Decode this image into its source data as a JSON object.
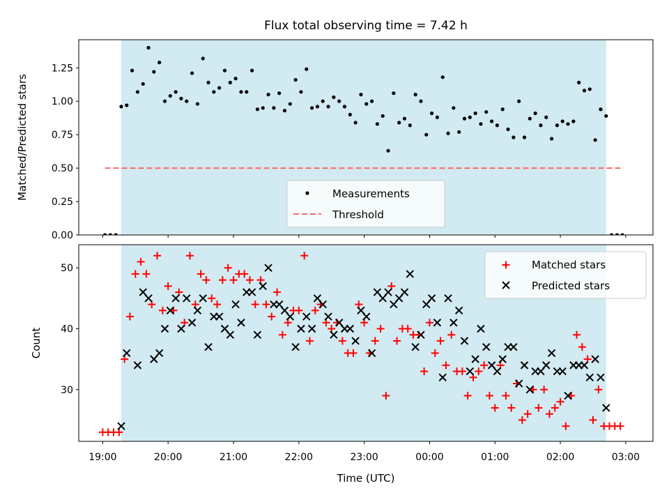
{
  "figure": {
    "title": "Flux total observing time = 7.42 h",
    "xlabel": "Time (UTC)"
  },
  "colors": {
    "shade": "#add8e6",
    "measurement": "#000000",
    "threshold": "#ff6666",
    "matched": "#ff0000",
    "predicted": "#000000"
  },
  "chart_data": [
    {
      "type": "scatter",
      "panel": "top",
      "ylabel": "Matched/Predicted stars",
      "xlim": [
        "18:38",
        "03:25"
      ],
      "ylim": [
        0,
        1.46
      ],
      "yticks": [
        0.0,
        0.25,
        0.5,
        0.75,
        1.0,
        1.25
      ],
      "ytick_labels": [
        "0.00",
        "0.25",
        "0.50",
        "0.75",
        "1.00",
        "1.25"
      ],
      "shaded_interval": [
        "19:17",
        "02:42"
      ],
      "threshold": {
        "label": "Threshold",
        "y": 0.5,
        "x": [
          "19:02",
          "02:58"
        ]
      },
      "legend": {
        "location": "lower center",
        "entries": [
          "Measurements",
          "Threshold"
        ]
      },
      "series": [
        {
          "name": "Measurements",
          "x": [
            "19:02",
            "19:07",
            "19:12",
            "19:17",
            "19:22",
            "19:27",
            "19:32",
            "19:37",
            "19:42",
            "19:47",
            "19:52",
            "19:57",
            "20:02",
            "20:07",
            "20:12",
            "20:17",
            "20:22",
            "20:27",
            "20:32",
            "20:37",
            "20:42",
            "20:47",
            "20:52",
            "20:57",
            "21:02",
            "21:07",
            "21:12",
            "21:17",
            "21:22",
            "21:27",
            "21:32",
            "21:37",
            "21:42",
            "21:47",
            "21:52",
            "21:57",
            "22:02",
            "22:07",
            "22:12",
            "22:17",
            "22:22",
            "22:27",
            "22:32",
            "22:37",
            "22:42",
            "22:47",
            "22:52",
            "22:57",
            "23:02",
            "23:07",
            "23:12",
            "23:17",
            "23:22",
            "23:27",
            "23:32",
            "23:37",
            "23:42",
            "23:47",
            "23:52",
            "23:57",
            "00:02",
            "00:07",
            "00:12",
            "00:17",
            "00:22",
            "00:27",
            "00:32",
            "00:37",
            "00:42",
            "00:47",
            "00:52",
            "00:57",
            "01:02",
            "01:07",
            "01:12",
            "01:17",
            "01:22",
            "01:27",
            "01:32",
            "01:37",
            "01:42",
            "01:47",
            "01:52",
            "01:57",
            "02:02",
            "02:07",
            "02:12",
            "02:17",
            "02:22",
            "02:27",
            "02:32",
            "02:37",
            "02:42",
            "02:47",
            "02:52",
            "02:57"
          ],
          "y": [
            0.0,
            0.0,
            0.0,
            0.96,
            0.97,
            1.23,
            1.07,
            1.13,
            1.4,
            1.22,
            1.29,
            1.0,
            1.04,
            1.07,
            1.02,
            1.0,
            1.21,
            0.98,
            1.32,
            1.14,
            1.07,
            1.1,
            1.23,
            1.14,
            1.17,
            1.07,
            1.07,
            1.23,
            0.94,
            0.95,
            1.05,
            0.95,
            1.06,
            0.93,
            0.98,
            1.16,
            1.07,
            1.24,
            0.95,
            0.96,
            1.0,
            0.96,
            1.03,
            1.0,
            0.96,
            0.9,
            0.84,
            1.05,
            0.98,
            1.0,
            0.83,
            0.89,
            0.63,
            1.06,
            0.84,
            0.87,
            0.82,
            1.05,
            1.0,
            0.75,
            0.91,
            0.88,
            1.18,
            0.76,
            0.95,
            0.77,
            0.87,
            0.88,
            0.91,
            0.83,
            0.92,
            0.85,
            0.82,
            0.94,
            0.79,
            0.73,
            1.0,
            0.73,
            0.87,
            0.91,
            0.82,
            0.88,
            0.72,
            0.82,
            0.85,
            0.83,
            0.85,
            1.14,
            1.08,
            1.09,
            0.71,
            0.94,
            0.89,
            0.0,
            0.0,
            0.0
          ]
        }
      ]
    },
    {
      "type": "scatter",
      "panel": "bottom",
      "ylabel": "Count",
      "xlabel": "Time (UTC)",
      "xlim": [
        "18:38",
        "03:25"
      ],
      "ylim": [
        21.5,
        53.8
      ],
      "yticks": [
        30,
        40,
        50
      ],
      "xticks": [
        "19:00",
        "20:00",
        "21:00",
        "22:00",
        "23:00",
        "00:00",
        "01:00",
        "02:00",
        "03:00"
      ],
      "shaded_interval": [
        "19:17",
        "02:42"
      ],
      "legend": {
        "location": "upper right",
        "entries": [
          "Matched stars",
          "Predicted stars"
        ]
      },
      "series": [
        {
          "name": "Matched stars",
          "marker": "+",
          "x": [
            "19:00",
            "19:05",
            "19:10",
            "19:15",
            "19:20",
            "19:25",
            "19:30",
            "19:35",
            "19:40",
            "19:45",
            "19:50",
            "19:55",
            "20:00",
            "20:05",
            "20:10",
            "20:15",
            "20:20",
            "20:25",
            "20:30",
            "20:35",
            "20:40",
            "20:45",
            "20:50",
            "20:55",
            "21:00",
            "21:05",
            "21:10",
            "21:15",
            "21:20",
            "21:25",
            "21:30",
            "21:35",
            "21:40",
            "21:45",
            "21:50",
            "21:55",
            "22:00",
            "22:05",
            "22:10",
            "22:15",
            "22:20",
            "22:25",
            "22:30",
            "22:35",
            "22:40",
            "22:45",
            "22:50",
            "22:55",
            "23:00",
            "23:05",
            "23:10",
            "23:15",
            "23:20",
            "23:25",
            "23:30",
            "23:35",
            "23:40",
            "23:45",
            "23:50",
            "23:55",
            "00:00",
            "00:05",
            "00:10",
            "00:15",
            "00:20",
            "00:25",
            "00:30",
            "00:35",
            "00:40",
            "00:45",
            "00:50",
            "00:55",
            "01:00",
            "01:05",
            "01:10",
            "01:15",
            "01:20",
            "01:25",
            "01:30",
            "01:35",
            "01:40",
            "01:45",
            "01:50",
            "01:55",
            "02:00",
            "02:05",
            "02:10",
            "02:15",
            "02:20",
            "02:25",
            "02:30",
            "02:35",
            "02:40",
            "02:45",
            "02:50",
            "02:55"
          ],
          "y": [
            23,
            23,
            23,
            23,
            35,
            42,
            49,
            51,
            49,
            44,
            52,
            43,
            47,
            43,
            46,
            41,
            52,
            44,
            49,
            48,
            45,
            44,
            48,
            50,
            48,
            49,
            49,
            48,
            44,
            48,
            44,
            42,
            46,
            39,
            41,
            43,
            43,
            52,
            38,
            43,
            44,
            41,
            40,
            41,
            38,
            36,
            36,
            44,
            41,
            36,
            38,
            40,
            29,
            47,
            38,
            40,
            40,
            39,
            39,
            33,
            41,
            36,
            38,
            34,
            39,
            33,
            33,
            29,
            32,
            33,
            34,
            29,
            27,
            34,
            29,
            27,
            31,
            25,
            26,
            30,
            27,
            30,
            26,
            27,
            28,
            24,
            29,
            39,
            37,
            35,
            25,
            30,
            24,
            24,
            24,
            24
          ]
        },
        {
          "name": "Predicted stars",
          "marker": "x",
          "x": [
            "19:17",
            "19:22",
            "19:32",
            "19:37",
            "19:42",
            "19:47",
            "19:52",
            "19:57",
            "20:02",
            "20:07",
            "20:12",
            "20:17",
            "20:22",
            "20:27",
            "20:32",
            "20:37",
            "20:42",
            "20:47",
            "20:52",
            "20:57",
            "21:02",
            "21:07",
            "21:12",
            "21:17",
            "21:22",
            "21:27",
            "21:32",
            "21:37",
            "21:42",
            "21:47",
            "21:52",
            "21:57",
            "22:02",
            "22:07",
            "22:12",
            "22:17",
            "22:22",
            "22:27",
            "22:32",
            "22:37",
            "22:42",
            "22:47",
            "22:52",
            "22:57",
            "23:02",
            "23:07",
            "23:12",
            "23:17",
            "23:22",
            "23:27",
            "23:32",
            "23:37",
            "23:42",
            "23:47",
            "23:52",
            "23:57",
            "00:02",
            "00:07",
            "00:12",
            "00:17",
            "00:22",
            "00:27",
            "00:32",
            "00:37",
            "00:42",
            "00:47",
            "00:52",
            "00:57",
            "01:02",
            "01:07",
            "01:12",
            "01:17",
            "01:22",
            "01:27",
            "01:32",
            "01:37",
            "01:42",
            "01:47",
            "01:52",
            "01:57",
            "02:02",
            "02:07",
            "02:12",
            "02:17",
            "02:22",
            "02:27",
            "02:32",
            "02:37",
            "02:42"
          ],
          "y": [
            24,
            36,
            34,
            46,
            45,
            35,
            36,
            40,
            43,
            45,
            40,
            45,
            41,
            43,
            45,
            37,
            42,
            42,
            40,
            39,
            44,
            41,
            46,
            46,
            39,
            47,
            50,
            44,
            44,
            43,
            42,
            37,
            40,
            42,
            40,
            45,
            44,
            42,
            39,
            41,
            40,
            40,
            38,
            43,
            42,
            36,
            46,
            45,
            46,
            44,
            45,
            46,
            49,
            37,
            39,
            44,
            45,
            41,
            32,
            45,
            41,
            43,
            38,
            33,
            35,
            40,
            37,
            34,
            33,
            35,
            37,
            37,
            31,
            34,
            30,
            33,
            33,
            34,
            36,
            33,
            33,
            29,
            34,
            34,
            34,
            32,
            35,
            32,
            27
          ]
        }
      ]
    }
  ]
}
